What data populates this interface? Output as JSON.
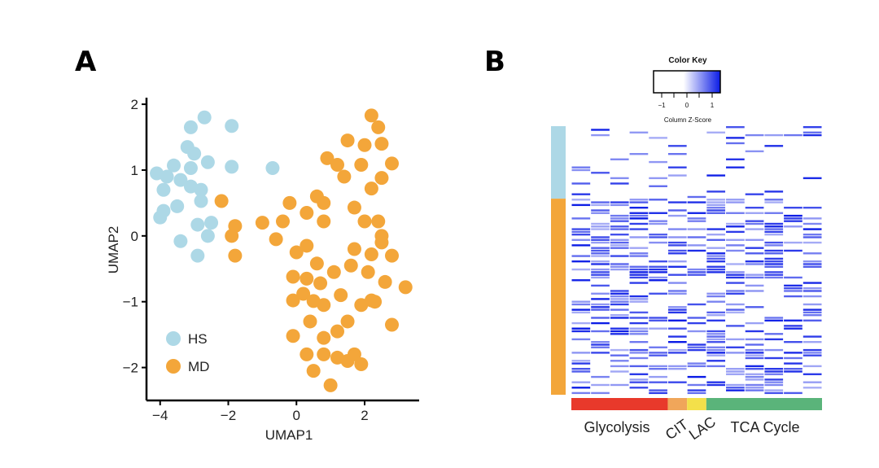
{
  "panels": {
    "a": "A",
    "b": "B"
  },
  "chart_data": [
    {
      "type": "scatter",
      "panel": "A",
      "xlabel": "UMAP1",
      "ylabel": "UMAP2",
      "xlim": [
        -4.4,
        3.6
      ],
      "ylim": [
        -2.5,
        2.1
      ],
      "xticks": [
        -4,
        -2,
        0,
        2
      ],
      "yticks": [
        -2,
        -1,
        0,
        1,
        2
      ],
      "legend_position": "bottom-left",
      "series": [
        {
          "name": "HS",
          "color": "#add8e6",
          "points": [
            [
              -2.7,
              1.8
            ],
            [
              -3.1,
              1.65
            ],
            [
              -1.9,
              1.67
            ],
            [
              -3.2,
              1.35
            ],
            [
              -3.0,
              1.25
            ],
            [
              -2.6,
              1.12
            ],
            [
              -3.6,
              1.07
            ],
            [
              -1.9,
              1.05
            ],
            [
              -4.1,
              0.95
            ],
            [
              -3.8,
              0.9
            ],
            [
              -3.4,
              0.85
            ],
            [
              -3.1,
              1.03
            ],
            [
              -0.7,
              1.03
            ],
            [
              -3.9,
              0.7
            ],
            [
              -3.1,
              0.75
            ],
            [
              -2.8,
              0.7
            ],
            [
              -2.8,
              0.53
            ],
            [
              -3.5,
              0.45
            ],
            [
              -3.9,
              0.38
            ],
            [
              -4.0,
              0.28
            ],
            [
              -2.9,
              0.17
            ],
            [
              -2.5,
              0.2
            ],
            [
              -3.4,
              -0.08
            ],
            [
              -2.6,
              0.0
            ],
            [
              -2.9,
              -0.3
            ]
          ]
        },
        {
          "name": "MD",
          "color": "#f3a63a",
          "points": [
            [
              2.2,
              1.83
            ],
            [
              2.4,
              1.65
            ],
            [
              1.5,
              1.45
            ],
            [
              2.0,
              1.38
            ],
            [
              2.5,
              1.4
            ],
            [
              0.9,
              1.18
            ],
            [
              1.2,
              1.08
            ],
            [
              1.9,
              1.08
            ],
            [
              2.8,
              1.1
            ],
            [
              1.4,
              0.9
            ],
            [
              2.5,
              0.88
            ],
            [
              2.2,
              0.72
            ],
            [
              -2.2,
              0.53
            ],
            [
              -0.2,
              0.5
            ],
            [
              0.6,
              0.6
            ],
            [
              0.8,
              0.5
            ],
            [
              1.7,
              0.43
            ],
            [
              0.3,
              0.35
            ],
            [
              -0.4,
              0.22
            ],
            [
              0.8,
              0.22
            ],
            [
              2.0,
              0.22
            ],
            [
              2.4,
              0.22
            ],
            [
              -1.0,
              0.2
            ],
            [
              -1.8,
              0.15
            ],
            [
              -1.9,
              0.0
            ],
            [
              2.5,
              0.0
            ],
            [
              -0.6,
              -0.05
            ],
            [
              0.3,
              -0.15
            ],
            [
              2.5,
              -0.1
            ],
            [
              0.0,
              -0.25
            ],
            [
              1.7,
              -0.2
            ],
            [
              2.2,
              -0.28
            ],
            [
              -1.8,
              -0.3
            ],
            [
              0.6,
              -0.42
            ],
            [
              1.6,
              -0.45
            ],
            [
              2.8,
              -0.3
            ],
            [
              1.1,
              -0.55
            ],
            [
              -0.1,
              -0.62
            ],
            [
              0.3,
              -0.65
            ],
            [
              2.1,
              -0.55
            ],
            [
              2.6,
              -0.7
            ],
            [
              0.7,
              -0.72
            ],
            [
              3.2,
              -0.78
            ],
            [
              0.2,
              -0.88
            ],
            [
              -0.1,
              -0.98
            ],
            [
              1.3,
              -0.9
            ],
            [
              2.2,
              -0.98
            ],
            [
              2.3,
              -1.0
            ],
            [
              0.5,
              -0.99
            ],
            [
              0.8,
              -1.05
            ],
            [
              1.9,
              -1.05
            ],
            [
              0.4,
              -1.3
            ],
            [
              1.5,
              -1.3
            ],
            [
              2.8,
              -1.35
            ],
            [
              1.2,
              -1.45
            ],
            [
              0.8,
              -1.55
            ],
            [
              -0.1,
              -1.52
            ],
            [
              0.3,
              -1.8
            ],
            [
              0.8,
              -1.8
            ],
            [
              1.2,
              -1.85
            ],
            [
              1.7,
              -1.8
            ],
            [
              1.5,
              -1.9
            ],
            [
              1.9,
              -1.95
            ],
            [
              0.5,
              -2.05
            ],
            [
              1.0,
              -2.27
            ]
          ]
        }
      ]
    },
    {
      "type": "heatmap",
      "panel": "B",
      "color_key": {
        "title": "Color Key",
        "ticks": [
          "-1",
          "0",
          "1"
        ],
        "label": "Column Z-Score",
        "low_color": "#ffffff",
        "high_color": "#0a1be6"
      },
      "n_rows": 100,
      "n_cols": 13,
      "row_groups": [
        {
          "name": "HS",
          "count": 27,
          "color": "#add8e6"
        },
        {
          "name": "MD",
          "count": 73,
          "color": "#f3a63a"
        }
      ],
      "col_groups": [
        {
          "name": "Glycolysis",
          "count": 5,
          "color": "#e8392b"
        },
        {
          "name": "CIT",
          "count": 1,
          "color": "#f0a65a"
        },
        {
          "name": "LAC",
          "count": 1,
          "color": "#f3e04a"
        },
        {
          "name": "TCA Cycle",
          "count": 6,
          "color": "#5ab47a"
        }
      ],
      "seed": 11
    }
  ]
}
